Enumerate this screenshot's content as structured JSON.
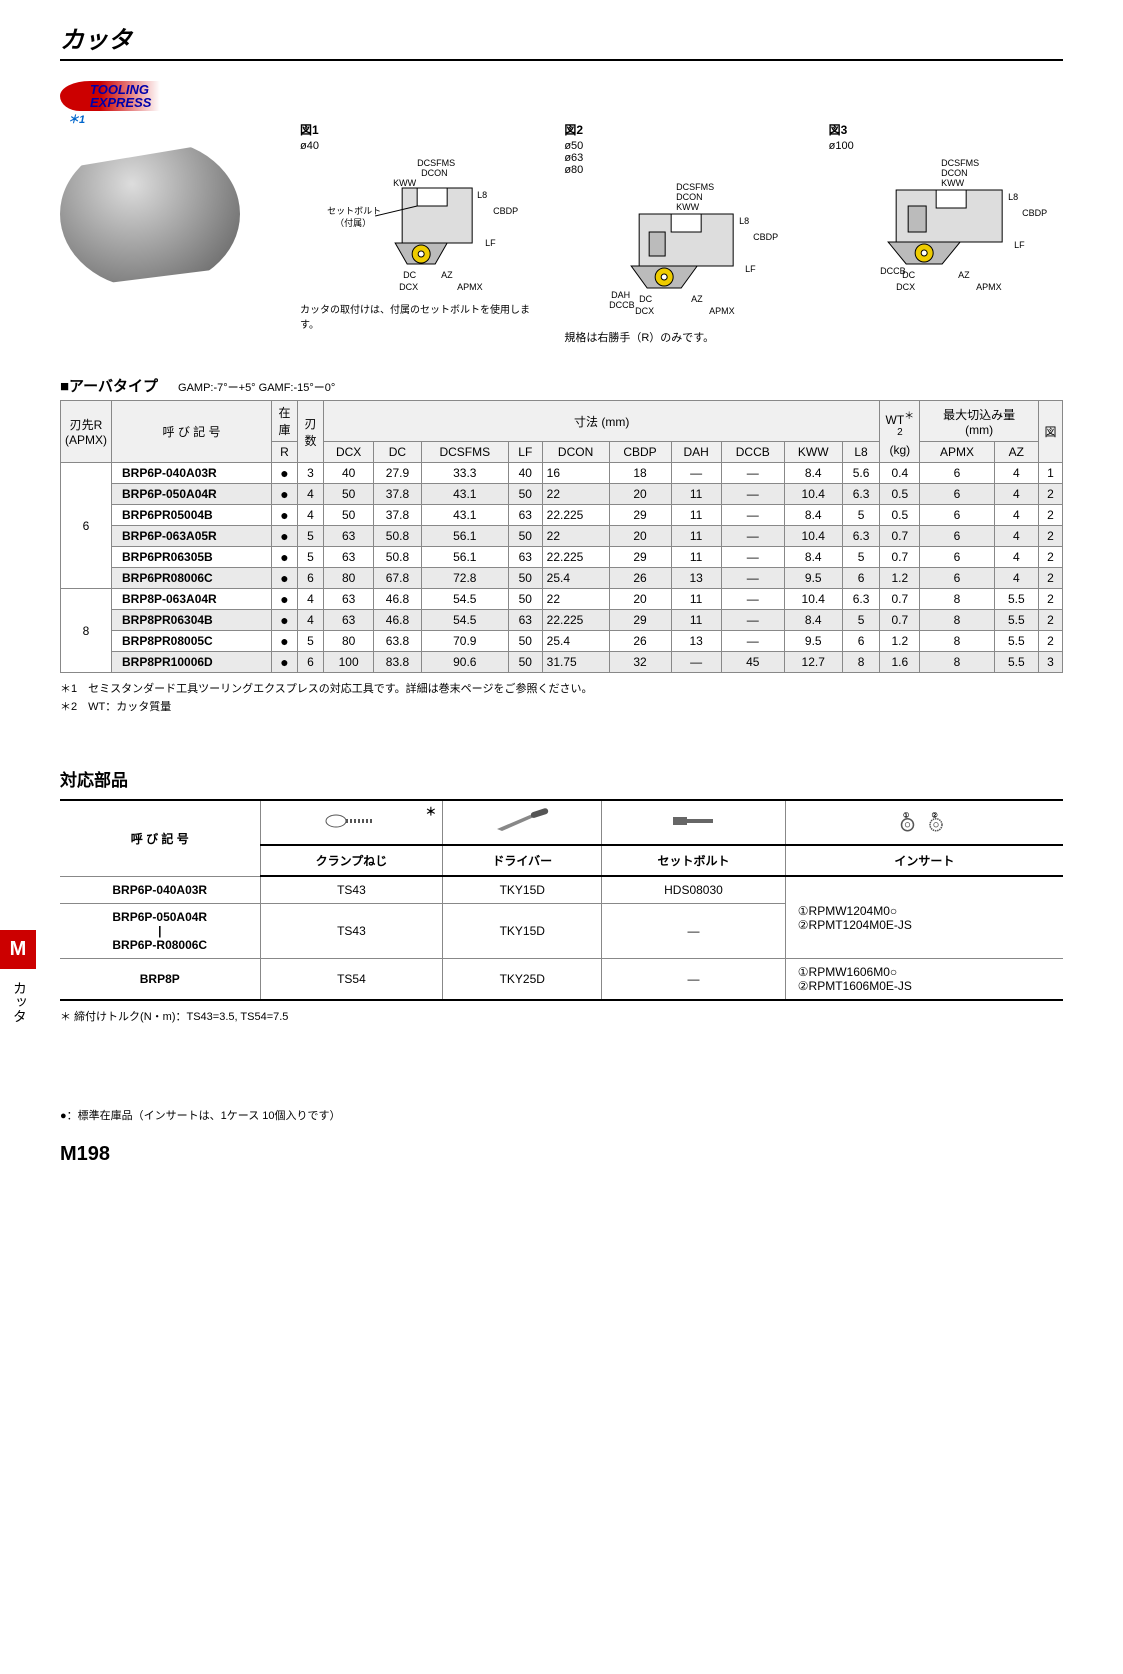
{
  "title": "カッタ",
  "logo": {
    "line1": "TOOLING",
    "line2": "EXPRESS",
    "ast": "＊1"
  },
  "diagrams": {
    "d1": {
      "title": "図1",
      "dia": "ø40",
      "labels": [
        "DCSFMS",
        "DCON",
        "KWW",
        "L8",
        "CBDP",
        "LF",
        "DC",
        "DCX",
        "AZ",
        "APMX"
      ],
      "center_note1": "セットボルト",
      "center_note2": "（付属）",
      "bottom_note": "カッタの取付けは、付属のセットボルトを使用します。"
    },
    "d2": {
      "title": "図2",
      "dia": "ø50\nø63\nø80",
      "labels": [
        "DCSFMS",
        "DCON",
        "KWW",
        "L8",
        "CBDP",
        "LF",
        "DAH",
        "DCCB",
        "DC",
        "DCX",
        "AZ",
        "APMX"
      ]
    },
    "d3": {
      "title": "図3",
      "dia": "ø100",
      "labels": [
        "DCSFMS",
        "DCON",
        "KWW",
        "L8",
        "CBDP",
        "LF",
        "DCCB",
        "DC",
        "DCX",
        "AZ",
        "APMX"
      ]
    },
    "spec_note": "規格は右勝手（R）のみです。"
  },
  "section1": {
    "title": "■アーバタイプ",
    "gamp": "GAMP:-7°ー+5°  GAMF:-15°ー0°"
  },
  "table1": {
    "headers": {
      "r_apmx_top": "刃先R",
      "r_apmx_bot": "(APMX)",
      "name": "呼 び 記 号",
      "stock": "在庫",
      "stock_unit": "R",
      "teeth": "刃数",
      "dim": "寸法 (mm)",
      "dcx": "DCX",
      "dc": "DC",
      "dcsfms": "DCSFMS",
      "lf": "LF",
      "dcon": "DCON",
      "cbdp": "CBDP",
      "dah": "DAH",
      "dccb": "DCCB",
      "kww": "KWW",
      "l8": "L8",
      "wt": "WT",
      "wt_unit": "(kg)",
      "wt_ast": "＊2",
      "max": "最大切込み量",
      "max_unit": "(mm)",
      "apmx": "APMX",
      "az": "AZ",
      "fig": "図"
    },
    "groups": [
      {
        "r": "6",
        "rows": [
          {
            "alt": false,
            "name": "BRP6P-040A03R",
            "stock": "●",
            "teeth": "3",
            "dcx": "40",
            "dc": "27.9",
            "dcsfms": "33.3",
            "lf": "40",
            "dcon": "16",
            "cbdp": "18",
            "dah": "—",
            "dccb": "—",
            "kww": "8.4",
            "l8": "5.6",
            "wt": "0.4",
            "apmx": "6",
            "az": "4",
            "fig": "1"
          },
          {
            "alt": true,
            "name": "BRP6P-050A04R",
            "stock": "●",
            "teeth": "4",
            "dcx": "50",
            "dc": "37.8",
            "dcsfms": "43.1",
            "lf": "50",
            "dcon": "22",
            "cbdp": "20",
            "dah": "11",
            "dccb": "—",
            "kww": "10.4",
            "l8": "6.3",
            "wt": "0.5",
            "apmx": "6",
            "az": "4",
            "fig": "2"
          },
          {
            "alt": false,
            "name": "BRP6PR05004B",
            "stock": "●",
            "teeth": "4",
            "dcx": "50",
            "dc": "37.8",
            "dcsfms": "43.1",
            "lf": "63",
            "dcon": "22.225",
            "cbdp": "29",
            "dah": "11",
            "dccb": "—",
            "kww": "8.4",
            "l8": "5",
            "wt": "0.5",
            "apmx": "6",
            "az": "4",
            "fig": "2"
          },
          {
            "alt": true,
            "name": "BRP6P-063A05R",
            "stock": "●",
            "teeth": "5",
            "dcx": "63",
            "dc": "50.8",
            "dcsfms": "56.1",
            "lf": "50",
            "dcon": "22",
            "cbdp": "20",
            "dah": "11",
            "dccb": "—",
            "kww": "10.4",
            "l8": "6.3",
            "wt": "0.7",
            "apmx": "6",
            "az": "4",
            "fig": "2"
          },
          {
            "alt": false,
            "name": "BRP6PR06305B",
            "stock": "●",
            "teeth": "5",
            "dcx": "63",
            "dc": "50.8",
            "dcsfms": "56.1",
            "lf": "63",
            "dcon": "22.225",
            "cbdp": "29",
            "dah": "11",
            "dccb": "—",
            "kww": "8.4",
            "l8": "5",
            "wt": "0.7",
            "apmx": "6",
            "az": "4",
            "fig": "2"
          },
          {
            "alt": true,
            "name": "BRP6PR08006C",
            "stock": "●",
            "teeth": "6",
            "dcx": "80",
            "dc": "67.8",
            "dcsfms": "72.8",
            "lf": "50",
            "dcon": "25.4",
            "cbdp": "26",
            "dah": "13",
            "dccb": "—",
            "kww": "9.5",
            "l8": "6",
            "wt": "1.2",
            "apmx": "6",
            "az": "4",
            "fig": "2"
          }
        ]
      },
      {
        "r": "8",
        "rows": [
          {
            "alt": false,
            "name": "BRP8P-063A04R",
            "stock": "●",
            "teeth": "4",
            "dcx": "63",
            "dc": "46.8",
            "dcsfms": "54.5",
            "lf": "50",
            "dcon": "22",
            "cbdp": "20",
            "dah": "11",
            "dccb": "—",
            "kww": "10.4",
            "l8": "6.3",
            "wt": "0.7",
            "apmx": "8",
            "az": "5.5",
            "fig": "2"
          },
          {
            "alt": true,
            "name": "BRP8PR06304B",
            "stock": "●",
            "teeth": "4",
            "dcx": "63",
            "dc": "46.8",
            "dcsfms": "54.5",
            "lf": "63",
            "dcon": "22.225",
            "cbdp": "29",
            "dah": "11",
            "dccb": "—",
            "kww": "8.4",
            "l8": "5",
            "wt": "0.7",
            "apmx": "8",
            "az": "5.5",
            "fig": "2"
          },
          {
            "alt": false,
            "name": "BRP8PR08005C",
            "stock": "●",
            "teeth": "5",
            "dcx": "80",
            "dc": "63.8",
            "dcsfms": "70.9",
            "lf": "50",
            "dcon": "25.4",
            "cbdp": "26",
            "dah": "13",
            "dccb": "—",
            "kww": "9.5",
            "l8": "6",
            "wt": "1.2",
            "apmx": "8",
            "az": "5.5",
            "fig": "2"
          },
          {
            "alt": true,
            "name": "BRP8PR10006D",
            "stock": "●",
            "teeth": "6",
            "dcx": "100",
            "dc": "83.8",
            "dcsfms": "90.6",
            "lf": "50",
            "dcon": "31.75",
            "cbdp": "32",
            "dah": "—",
            "dccb": "45",
            "kww": "12.7",
            "l8": "8",
            "wt": "1.6",
            "apmx": "8",
            "az": "5.5",
            "fig": "3"
          }
        ]
      }
    ]
  },
  "footnotes": {
    "f1": "＊1　セミスタンダード工具ツーリングエクスプレスの対応工具です。詳細は巻末ページをご参照ください。",
    "f2": "＊2　WT：カッタ質量"
  },
  "parts": {
    "title": "対応部品",
    "name_hdr": "呼 び 記 号",
    "ast": "＊",
    "cols": [
      "クランプねじ",
      "ドライバー",
      "セットボルト",
      "インサート"
    ],
    "rows": [
      {
        "name": "BRP6P-040A03R",
        "c1": "TS43",
        "c2": "TKY15D",
        "c3": "HDS08030",
        "c4": "",
        "insert_rowspan": true
      },
      {
        "name": "BRP6P-050A04R\n|\nBRP6P-R08006C",
        "c1": "TS43",
        "c2": "TKY15D",
        "c3": "—",
        "c4": "①RPMW1204M0○\n②RPMT1204M0E-JS"
      },
      {
        "name": "BRP8P",
        "c1": "TS54",
        "c2": "TKY25D",
        "c3": "—",
        "c4": "①RPMW1606M0○\n②RPMT1606M0E-JS"
      }
    ],
    "torque": "＊ 締付けトルク(N・m)：TS43=3.5, TS54=7.5"
  },
  "side": {
    "tab": "M",
    "label": "カッタ"
  },
  "bottom_note": "●：標準在庫品（インサートは、1ケース 10個入りです）",
  "page": "M198"
}
